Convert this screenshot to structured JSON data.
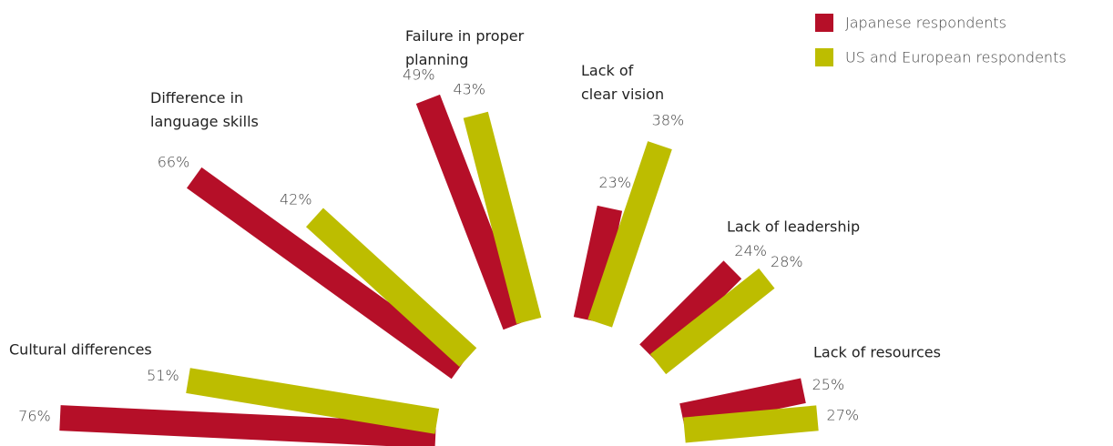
{
  "chart_data": {
    "type": "radial_bar",
    "categories": [
      "Cultural differences",
      "Difference in\nlanguage skills",
      "Failure in proper\nplanning",
      "Lack of\nclear vision",
      "Lack of leadership",
      "Lack of resources"
    ],
    "series": [
      {
        "name": "Japanese respondents",
        "color": "#b50f28",
        "values": [
          76,
          66,
          49,
          23,
          24,
          25
        ],
        "value_labels": [
          "76%",
          "66%",
          "49%",
          "23%",
          "24%",
          "25%"
        ]
      },
      {
        "name": "US and European respondents",
        "color": "#bdbd00",
        "values": [
          51,
          42,
          43,
          38,
          28,
          27
        ],
        "value_labels": [
          "51%",
          "42%",
          "43%",
          "38%",
          "28%",
          "27%"
        ]
      }
    ]
  }
}
